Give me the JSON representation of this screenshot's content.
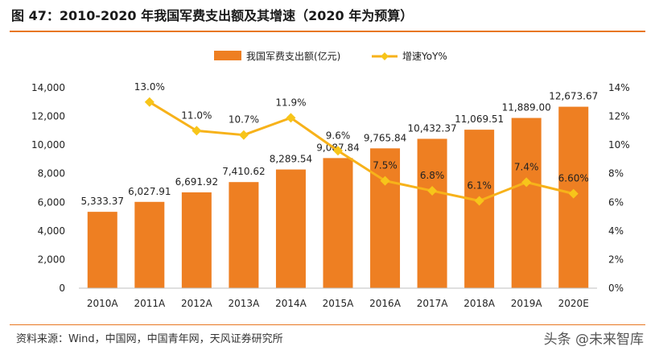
{
  "figure": {
    "title": "图 47：2010-2020 年我国军费支出额及其增速（2020 年为预算）",
    "source": "资料来源：Wind，中国网，中国青年网，天风证券研究所",
    "watermark": "头条 @未来智库"
  },
  "colors": {
    "bar": "#ee7f22",
    "line": "#f7b21a",
    "marker": "#f7c51a",
    "accent": "#e87722",
    "text": "#222222",
    "axis": "#bfbfbf"
  },
  "chart_data": {
    "type": "bar",
    "categories": [
      "2010A",
      "2011A",
      "2012A",
      "2013A",
      "2014A",
      "2015A",
      "2016A",
      "2017A",
      "2018A",
      "2019A",
      "2020E"
    ],
    "series": [
      {
        "name": "我国军费支出额(亿元)",
        "kind": "bar",
        "axis": "left",
        "values": [
          5333.37,
          6027.91,
          6691.92,
          7410.62,
          8289.54,
          9087.84,
          9765.84,
          10432.37,
          11069.51,
          11889.0,
          12673.67
        ],
        "labels": [
          "5,333.37",
          "6,027.91",
          "6,691.92",
          "7,410.62",
          "8,289.54",
          "9,087.84",
          "9,765.84",
          "10,432.37",
          "11,069.51",
          "11,889.00",
          "12,673.67"
        ]
      },
      {
        "name": "增速YoY%",
        "kind": "line",
        "axis": "right",
        "values": [
          null,
          13.0,
          11.0,
          10.7,
          11.9,
          9.6,
          7.5,
          6.8,
          6.1,
          7.4,
          6.6
        ],
        "labels": [
          "",
          "13.0%",
          "11.0%",
          "10.7%",
          "11.9%",
          "9.6%",
          "7.5%",
          "6.8%",
          "6.1%",
          "7.4%",
          "6.60%"
        ]
      }
    ],
    "y_left": {
      "min": 0,
      "max": 14000,
      "ticks": [
        0,
        2000,
        4000,
        6000,
        8000,
        10000,
        12000,
        14000
      ],
      "tick_labels": [
        "0",
        "2,000",
        "4,000",
        "6,000",
        "8,000",
        "10,000",
        "12,000",
        "14,000"
      ]
    },
    "y_right": {
      "min": 0,
      "max": 14,
      "ticks": [
        0,
        2,
        4,
        6,
        8,
        10,
        12,
        14
      ],
      "tick_labels": [
        "0%",
        "2%",
        "4%",
        "6%",
        "8%",
        "10%",
        "12%",
        "14%"
      ]
    },
    "legend": {
      "position": "top-center"
    },
    "grid": false
  }
}
